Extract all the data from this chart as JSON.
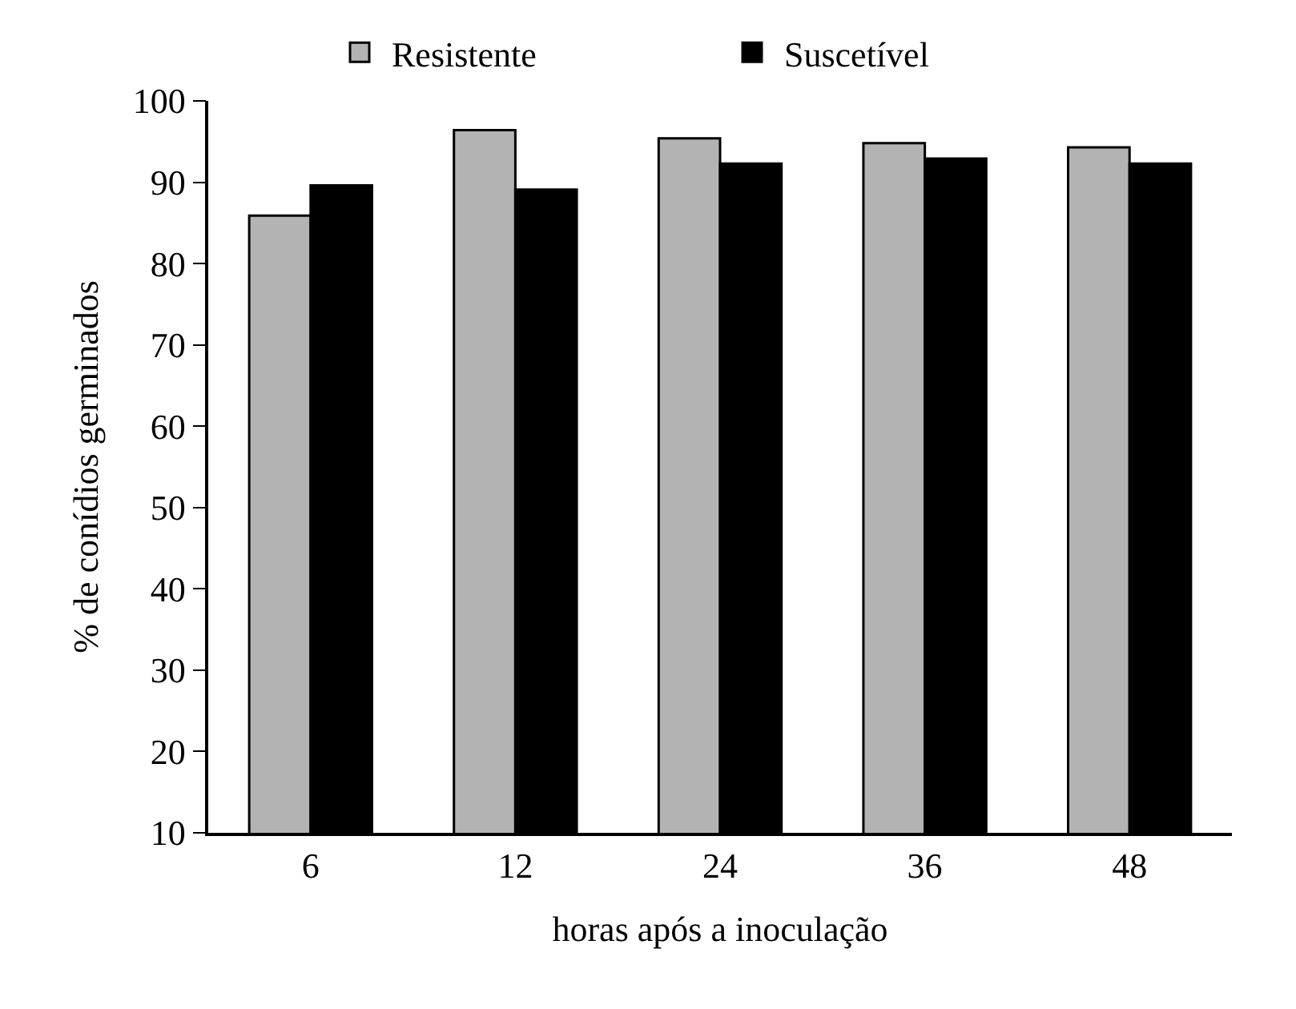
{
  "chart_data": {
    "type": "bar",
    "xlabel": "horas após a inoculação",
    "ylabel": "% de conídios germinados",
    "categories": [
      "6",
      "12",
      "24",
      "36",
      "48"
    ],
    "series": [
      {
        "name": "Resistente",
        "color": "#b3b3b3",
        "values": [
          85.9,
          96.4,
          95.4,
          94.8,
          94.3
        ]
      },
      {
        "name": "Suscetível",
        "color": "#000000",
        "values": [
          89.6,
          89.1,
          92.3,
          92.9,
          92.3
        ]
      }
    ],
    "ylim": [
      10,
      100
    ],
    "yticks": [
      10,
      20,
      30,
      40,
      50,
      60,
      70,
      80,
      90,
      100
    ],
    "grid": false,
    "legend": "top"
  }
}
